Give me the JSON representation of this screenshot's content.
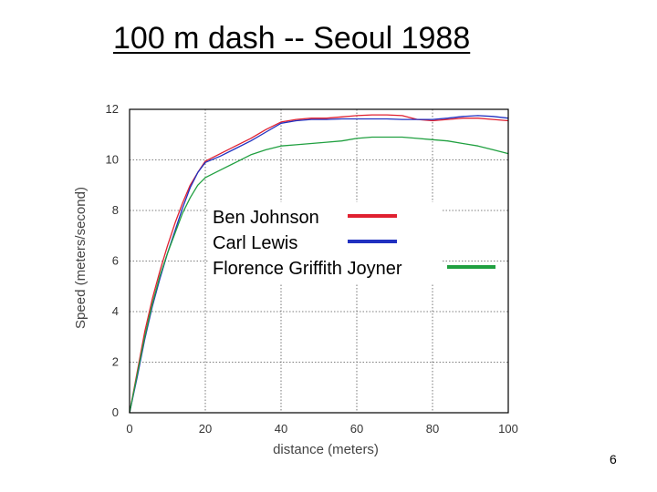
{
  "slide": {
    "title": "100 m dash -- Seoul 1988",
    "page_number": "6"
  },
  "chart_data": {
    "type": "line",
    "xlabel": "distance (meters)",
    "ylabel": "Speed (meters/second)",
    "xlim": [
      0,
      100
    ],
    "ylim": [
      0,
      12
    ],
    "xticks": [
      0,
      20,
      40,
      60,
      80,
      100
    ],
    "yticks": [
      0,
      2,
      4,
      6,
      8,
      10,
      12
    ],
    "grid": true,
    "legend_placement": "center-left inside plot",
    "series": [
      {
        "name": "Ben Johnson",
        "color": "#e02030",
        "x": [
          0,
          2,
          4,
          6,
          8,
          10,
          12,
          14,
          16,
          18,
          20,
          24,
          28,
          32,
          36,
          40,
          44,
          48,
          52,
          56,
          60,
          64,
          68,
          72,
          76,
          80,
          84,
          88,
          92,
          96,
          100
        ],
        "y": [
          0,
          1.6,
          3.2,
          4.5,
          5.6,
          6.6,
          7.5,
          8.3,
          9.0,
          9.5,
          9.95,
          10.25,
          10.55,
          10.85,
          11.2,
          11.5,
          11.6,
          11.65,
          11.65,
          11.7,
          11.75,
          11.78,
          11.78,
          11.75,
          11.6,
          11.55,
          11.6,
          11.65,
          11.65,
          11.6,
          11.55
        ]
      },
      {
        "name": "Carl Lewis",
        "color": "#2030c0",
        "x": [
          0,
          2,
          4,
          6,
          8,
          10,
          12,
          14,
          16,
          18,
          20,
          24,
          28,
          32,
          36,
          40,
          44,
          48,
          52,
          56,
          60,
          64,
          68,
          72,
          76,
          80,
          84,
          88,
          92,
          96,
          100
        ],
        "y": [
          0,
          1.4,
          2.9,
          4.2,
          5.3,
          6.3,
          7.2,
          8.1,
          8.9,
          9.5,
          9.9,
          10.15,
          10.45,
          10.75,
          11.1,
          11.45,
          11.55,
          11.6,
          11.6,
          11.62,
          11.62,
          11.62,
          11.62,
          11.6,
          11.6,
          11.6,
          11.65,
          11.72,
          11.75,
          11.72,
          11.65
        ]
      },
      {
        "name": "Florence Griffith Joyner",
        "color": "#20a040",
        "x": [
          0,
          2,
          4,
          6,
          8,
          10,
          12,
          14,
          16,
          18,
          20,
          24,
          28,
          32,
          36,
          40,
          44,
          48,
          52,
          56,
          60,
          64,
          68,
          72,
          76,
          80,
          84,
          88,
          92,
          96,
          100
        ],
        "y": [
          0,
          1.5,
          3.0,
          4.3,
          5.4,
          6.3,
          7.1,
          7.9,
          8.5,
          9.0,
          9.3,
          9.6,
          9.9,
          10.2,
          10.4,
          10.55,
          10.6,
          10.65,
          10.7,
          10.75,
          10.85,
          10.9,
          10.9,
          10.9,
          10.85,
          10.8,
          10.75,
          10.65,
          10.55,
          10.4,
          10.25
        ]
      }
    ]
  }
}
